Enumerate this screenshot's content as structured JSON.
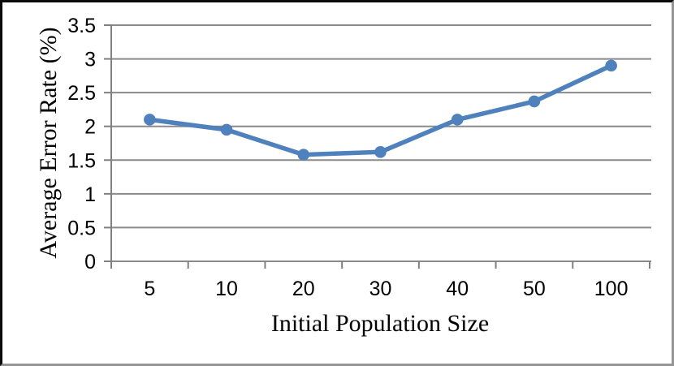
{
  "chart_data": {
    "type": "line",
    "title": "",
    "xlabel": "Initial Population Size",
    "ylabel": "Average Error Rate (%)",
    "categories": [
      "5",
      "10",
      "20",
      "30",
      "40",
      "50",
      "100"
    ],
    "series": [
      {
        "values": [
          2.1,
          1.95,
          1.58,
          1.62,
          2.1,
          2.37,
          2.9
        ]
      }
    ],
    "ylim": [
      0,
      3.5
    ],
    "ytick_step": 0.5,
    "ytick_labels": [
      "0",
      "0.5",
      "1",
      "1.5",
      "2",
      "2.5",
      "3",
      "3.5"
    ],
    "grid": "horizontal",
    "legend": "none",
    "colors": {
      "line": "#4F81BD",
      "marker": "#4F81BD",
      "grid": "#8A8A8A",
      "axis": "#808080",
      "text": "#000000",
      "background": "#FFFFFF"
    }
  }
}
